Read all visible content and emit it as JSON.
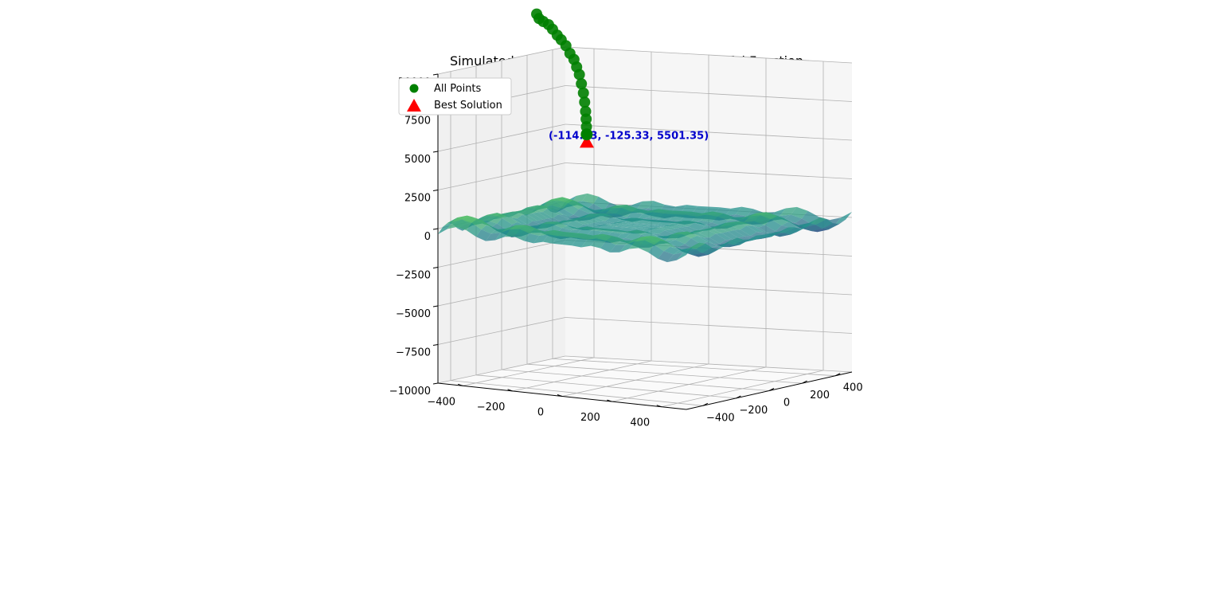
{
  "chart_data": {
    "type": "surface3d-scatter",
    "title": "Simulated Annealing Optimization of Schwefel Function",
    "xlabel": "",
    "ylabel": "",
    "zlabel": "",
    "xlim": [
      -500,
      500
    ],
    "ylim": [
      -500,
      500
    ],
    "zlim": [
      -10000,
      10000
    ],
    "x_ticks": [
      "−400",
      "−200",
      "0",
      "200",
      "400"
    ],
    "y_ticks": [
      "400",
      "200",
      "0",
      "−200",
      "−400"
    ],
    "z_ticks": [
      "10000",
      "7500",
      "5000",
      "2500",
      "0",
      "−2500",
      "−5000",
      "−7500",
      "−10000"
    ],
    "grid": true,
    "legend": {
      "placement": "upper-left",
      "entries": [
        {
          "label": "All Points",
          "marker": "circle",
          "color": "#008000"
        },
        {
          "label": "Best Solution",
          "marker": "triangle",
          "color": "#ff0000"
        }
      ]
    },
    "surface": {
      "function": "Schwefel",
      "colormap": "viridis",
      "z_range": [
        -1600,
        1600
      ]
    },
    "points": {
      "color": "#008000",
      "series": [
        {
          "x": -230,
          "y": -270,
          "z": 13900
        },
        {
          "x": -225,
          "y": -262,
          "z": 13600
        },
        {
          "x": -215,
          "y": -250,
          "z": 13400
        },
        {
          "x": -200,
          "y": -240,
          "z": 13200
        },
        {
          "x": -190,
          "y": -230,
          "z": 12900
        },
        {
          "x": -180,
          "y": -215,
          "z": 12500
        },
        {
          "x": -170,
          "y": -205,
          "z": 12200
        },
        {
          "x": -160,
          "y": -190,
          "z": 11800
        },
        {
          "x": -150,
          "y": -180,
          "z": 11300
        },
        {
          "x": -140,
          "y": -170,
          "z": 10900
        },
        {
          "x": -135,
          "y": -160,
          "z": 10400
        },
        {
          "x": -130,
          "y": -150,
          "z": 9900
        },
        {
          "x": -125,
          "y": -145,
          "z": 9300
        },
        {
          "x": -120,
          "y": -140,
          "z": 8700
        },
        {
          "x": -118,
          "y": -135,
          "z": 8100
        },
        {
          "x": -116,
          "y": -132,
          "z": 7500
        },
        {
          "x": -115,
          "y": -130,
          "z": 7000
        },
        {
          "x": -115,
          "y": -128,
          "z": 6500
        },
        {
          "x": -115,
          "y": -126,
          "z": 6000
        }
      ]
    },
    "best_solution": {
      "x": -114.93,
      "y": -125.33,
      "z": 5501.35,
      "color": "#ff0000"
    },
    "annotation": {
      "text": "(-114.93, -125.33, 5501.35)",
      "color": "#0000cc"
    }
  }
}
